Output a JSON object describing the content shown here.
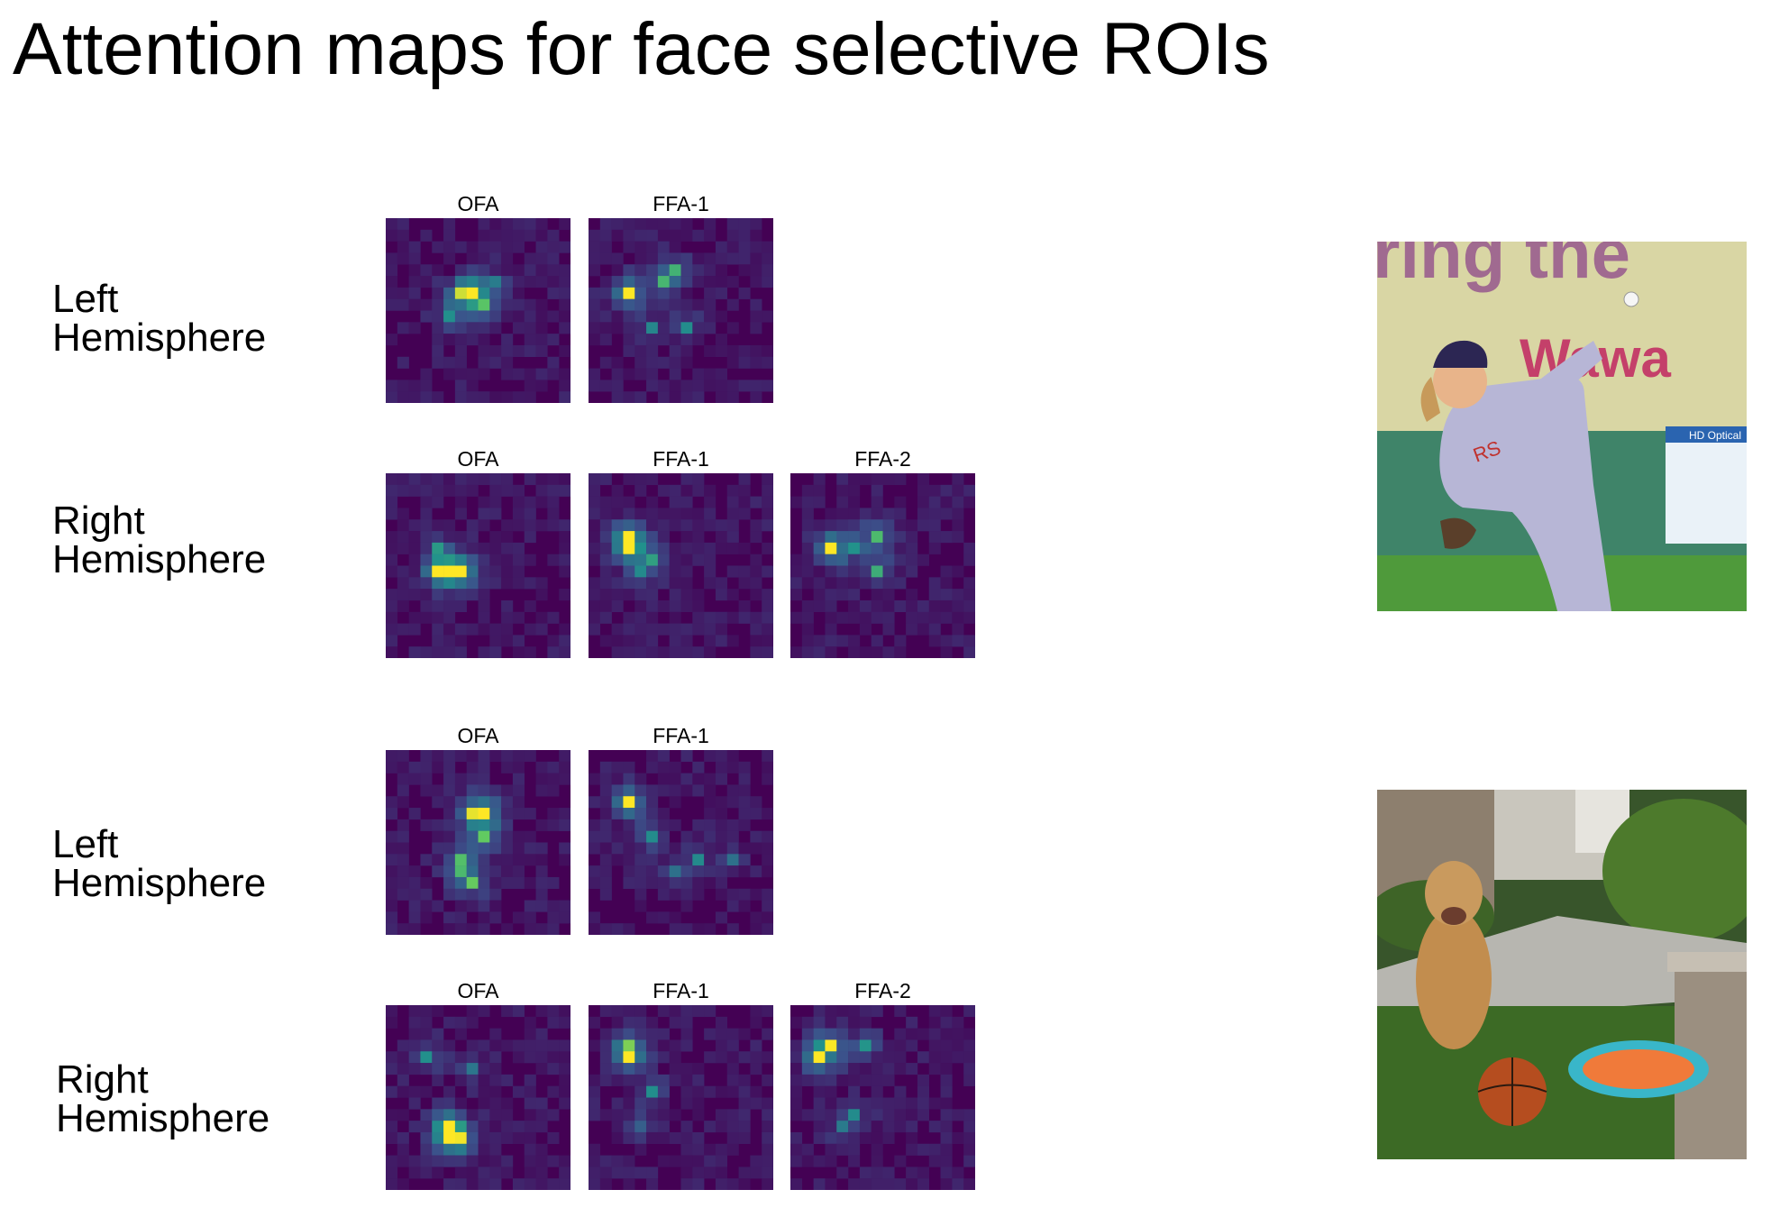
{
  "title": "Attention maps for face selective ROIs",
  "examples": [
    {
      "image": "baseball pitcher",
      "sign_text": [
        "ring the",
        "Wawa",
        "HD Optical"
      ],
      "rows": [
        {
          "label": [
            "Left",
            "Hemisphere"
          ],
          "maps": [
            {
              "roi": "OFA",
              "seed": 11,
              "hot": [
                [
                  7,
                  6,
                  1.0
                ],
                [
                  6,
                  6,
                  0.6
                ],
                [
                  8,
                  7,
                  0.55
                ],
                [
                  5,
                  8,
                  0.45
                ],
                [
                  9,
                  5,
                  0.35
                ]
              ]
            },
            {
              "roi": "FFA-1",
              "seed": 23,
              "hot": [
                [
                  3,
                  6,
                  1.0
                ],
                [
                  6,
                  5,
                  0.55
                ],
                [
                  7,
                  4,
                  0.45
                ],
                [
                  8,
                  9,
                  0.4
                ],
                [
                  5,
                  9,
                  0.35
                ]
              ]
            }
          ]
        },
        {
          "label": [
            "Right",
            "Hemisphere"
          ],
          "maps": [
            {
              "roi": "OFA",
              "seed": 37,
              "hot": [
                [
                  6,
                  8,
                  1.0
                ],
                [
                  4,
                  8,
                  0.85
                ],
                [
                  5,
                  8,
                  0.7
                ],
                [
                  4,
                  6,
                  0.4
                ]
              ]
            },
            {
              "roi": "FFA-1",
              "seed": 41,
              "hot": [
                [
                  3,
                  5,
                  1.0
                ],
                [
                  3,
                  6,
                  0.9
                ],
                [
                  5,
                  7,
                  0.4
                ],
                [
                  4,
                  8,
                  0.35
                ]
              ]
            },
            {
              "roi": "FFA-2",
              "seed": 53,
              "hot": [
                [
                  3,
                  6,
                  1.0
                ],
                [
                  7,
                  5,
                  0.65
                ],
                [
                  7,
                  8,
                  0.55
                ],
                [
                  5,
                  6,
                  0.4
                ]
              ]
            }
          ]
        }
      ]
    },
    {
      "image": "golden retriever on lawn",
      "sign_text": [],
      "rows": [
        {
          "label": [
            "Left",
            "Hemisphere"
          ],
          "maps": [
            {
              "roi": "OFA",
              "seed": 61,
              "hot": [
                [
                  8,
                  5,
                  1.0
                ],
                [
                  7,
                  5,
                  0.7
                ],
                [
                  8,
                  7,
                  0.55
                ],
                [
                  6,
                  9,
                  0.5
                ],
                [
                  6,
                  10,
                  0.45
                ],
                [
                  7,
                  11,
                  0.6
                ]
              ]
            },
            {
              "roi": "FFA-1",
              "seed": 71,
              "hot": [
                [
                  3,
                  4,
                  1.0
                ],
                [
                  5,
                  7,
                  0.45
                ],
                [
                  9,
                  9,
                  0.35
                ],
                [
                  12,
                  9,
                  0.3
                ],
                [
                  7,
                  10,
                  0.35
                ]
              ]
            }
          ]
        },
        {
          "label": [
            "Right",
            "Hemisphere"
          ],
          "maps": [
            {
              "roi": "OFA",
              "seed": 83,
              "hot": [
                [
                  5,
                  10,
                  0.9
                ],
                [
                  5,
                  11,
                  1.0
                ],
                [
                  6,
                  11,
                  0.55
                ],
                [
                  3,
                  4,
                  0.4
                ],
                [
                  7,
                  5,
                  0.35
                ]
              ]
            },
            {
              "roi": "FFA-1",
              "seed": 97,
              "hot": [
                [
                  3,
                  4,
                  1.0
                ],
                [
                  3,
                  3,
                  0.55
                ],
                [
                  5,
                  7,
                  0.4
                ],
                [
                  4,
                  10,
                  0.3
                ]
              ]
            },
            {
              "roi": "FFA-2",
              "seed": 101,
              "hot": [
                [
                  2,
                  4,
                  1.0
                ],
                [
                  3,
                  3,
                  0.75
                ],
                [
                  6,
                  3,
                  0.5
                ],
                [
                  4,
                  10,
                  0.35
                ],
                [
                  5,
                  9,
                  0.4
                ]
              ]
            }
          ]
        }
      ]
    }
  ],
  "colormap": [
    "#440154",
    "#3b528b",
    "#21918c",
    "#5ec962",
    "#fde725"
  ]
}
